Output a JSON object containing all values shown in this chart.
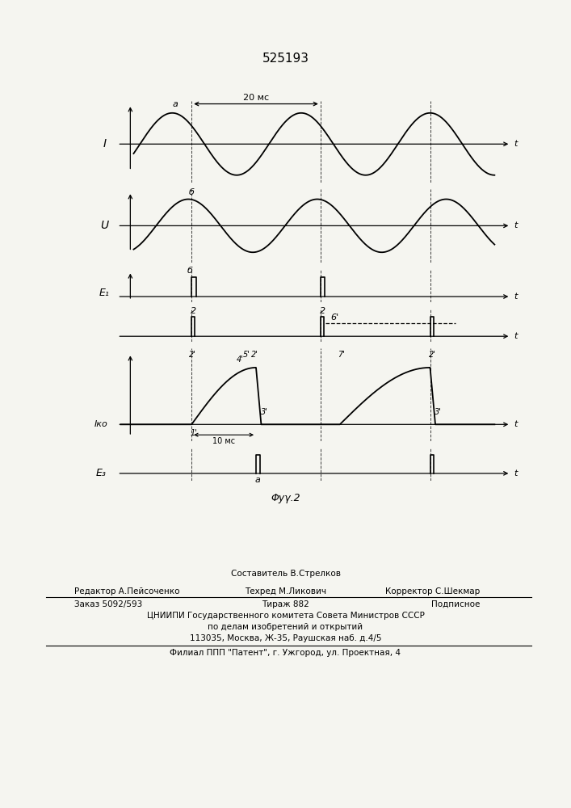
{
  "title": "525193",
  "background_color": "#f5f5f0",
  "line_color": "#1a1a1a",
  "label_I": "I",
  "label_U": "U",
  "label_E1": "E₁",
  "label_Iko": "Iко",
  "label_E3": "E₃",
  "label_t": "t",
  "label_a": "a",
  "label_b": "б",
  "label_b2": "б",
  "label_2": "2",
  "label_6p": "6'",
  "label_1p": "1'",
  "label_2p": "2'",
  "label_3p": "3'",
  "label_4p": "4'",
  "label_5p": "5'",
  "label_7p": "7'",
  "label_0": "а",
  "label_10ms": "10 мс",
  "label_20ms": "20 мс",
  "fig_caption": "Φуγ.2",
  "footer_sestavitel": "Составитель В.Стрелков",
  "footer_redaktor": "Редактор А.Пейсоченко",
  "footer_tehred": "Техред М.Ликович",
  "footer_korrektor": "Корректор С.Шекмар",
  "footer_zakaz": "Заказ 5092/593",
  "footer_tirazh": "Тираж 882",
  "footer_podpisnoe": "Подписное",
  "footer_cniipи": "ЦНИИПИ Государственного комитета Совета Министров СССР",
  "footer_podela": "по делам изобретений и открытий",
  "footer_address": "113035, Москва, Ж-35, Раушская наб. д.4/5",
  "footer_filial": "Филиал ППП \"Патент\", г. Ужгород, ул. Проектная, 4"
}
